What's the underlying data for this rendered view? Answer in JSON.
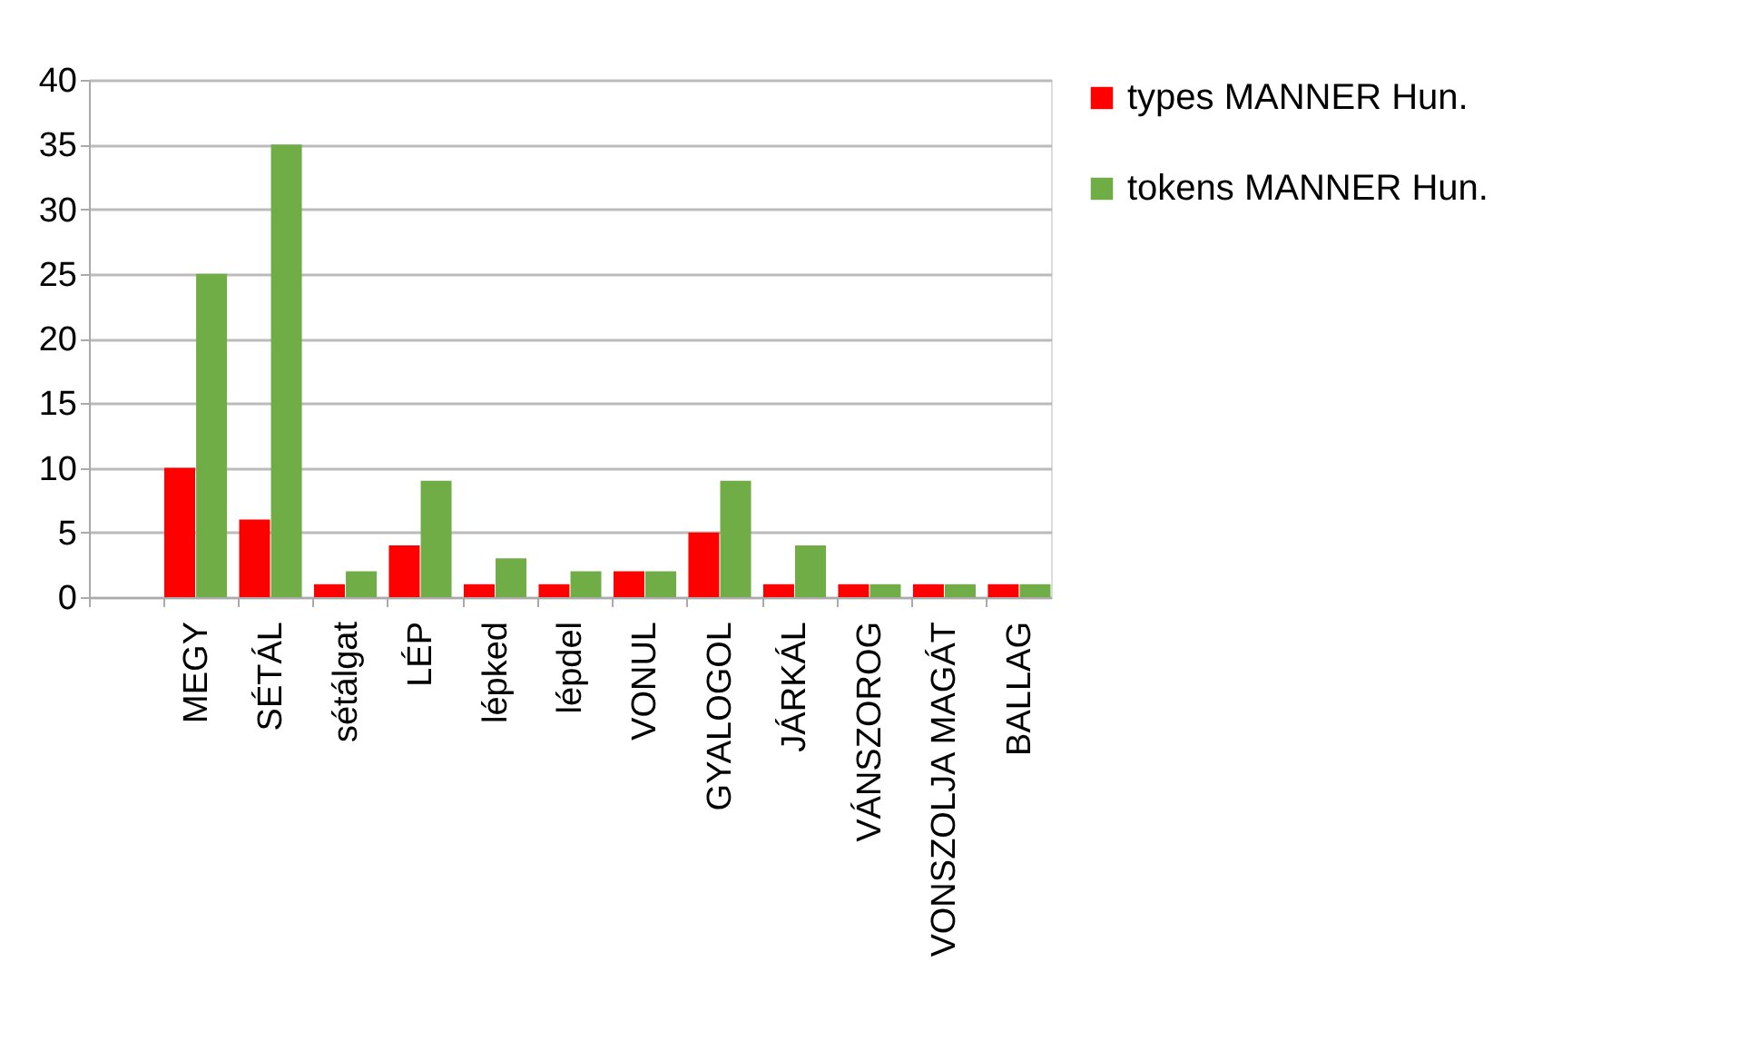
{
  "chart_data": {
    "type": "bar",
    "categories": [
      null,
      "MEGY",
      "SÉTÁL",
      "sétálgat",
      "LÉP",
      "lépked",
      "lépdel",
      "VONUL",
      "GYALOGOL",
      "JÁRKÁL",
      "VÁNSZOROG",
      "VONSZOLJA MAGÁT",
      "BALLAG"
    ],
    "series": [
      {
        "name": "types MANNER Hun.",
        "color": "#ff0000",
        "values": [
          null,
          10,
          6,
          1,
          4,
          1,
          1,
          2,
          5,
          1,
          1,
          1,
          1
        ]
      },
      {
        "name": "tokens  MANNER Hun.",
        "color": "#70ad47",
        "values": [
          null,
          25,
          35,
          2,
          9,
          3,
          2,
          2,
          9,
          4,
          1,
          1,
          1
        ]
      }
    ],
    "ylim": [
      0,
      40
    ],
    "yticks": [
      0,
      5,
      10,
      15,
      20,
      25,
      30,
      35,
      40
    ],
    "grid": "y",
    "legend": "right"
  }
}
